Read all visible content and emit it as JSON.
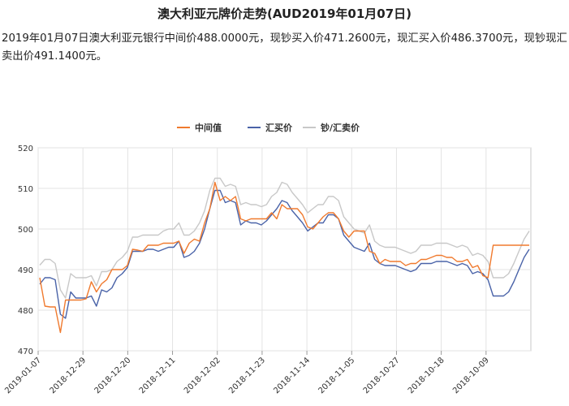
{
  "header": {
    "title": "澳大利亚元牌价走势(AUD2019年01月07日)",
    "description": "2019年01月07日澳大利亚元银行中间价488.0000元，现钞买入价471.2600元，现汇买入价486.3700元，现钞现汇卖出价491.1400元。"
  },
  "chart_data": {
    "type": "line",
    "ylim": [
      470,
      520
    ],
    "yticks": [
      "520",
      "510",
      "500",
      "490",
      "480",
      "470"
    ],
    "x_tick_labels": [
      "2019-01-07",
      "2018-12-29",
      "2018-12-20",
      "2018-12-11",
      "2018-12-02",
      "2018-11-23",
      "2018-11-14",
      "2018-11-05",
      "2018-10-27",
      "2018-10-18",
      "2018-10-09"
    ],
    "grid": true,
    "legend_position": "top-center",
    "series": [
      {
        "name": "中间值",
        "color": "#f07a2e",
        "values": [
          488.0,
          481.0,
          480.8,
          480.8,
          474.5,
          482.5,
          482.5,
          482.5,
          482.5,
          482.8,
          487.0,
          484.5,
          486.5,
          487.5,
          490.0,
          490.0,
          490.0,
          491.0,
          495.0,
          494.8,
          494.5,
          496.0,
          496.0,
          496.0,
          496.5,
          496.5,
          496.5,
          497.0,
          494.0,
          496.5,
          497.5,
          497.0,
          501.5,
          505.0,
          511.5,
          507.0,
          508.0,
          507.0,
          508.0,
          502.5,
          502.0,
          502.5,
          502.5,
          502.5,
          502.5,
          504.0,
          502.5,
          506.0,
          505.0,
          505.0,
          505.0,
          503.5,
          500.5,
          500.0,
          501.5,
          503.0,
          504.0,
          504.0,
          502.5,
          499.5,
          498.0,
          499.5,
          499.5,
          499.5,
          494.5,
          494.0,
          491.5,
          492.5,
          492.0,
          492.0,
          492.0,
          491.0,
          491.5,
          491.5,
          492.5,
          492.5,
          493.0,
          493.5,
          493.5,
          493.0,
          493.0,
          492.0,
          492.0,
          492.5,
          490.5,
          491.0,
          488.5,
          488.0,
          496.0,
          496.0,
          496.0,
          496.0,
          496.0,
          496.0,
          496.0,
          496.0
        ]
      },
      {
        "name": "汇买价",
        "color": "#4a63a8",
        "values": [
          486.4,
          488.0,
          488.0,
          487.5,
          479.0,
          478.0,
          484.5,
          483.0,
          483.0,
          483.0,
          483.5,
          481.0,
          485.0,
          484.5,
          485.5,
          488.0,
          489.0,
          490.5,
          494.5,
          494.5,
          494.5,
          495.0,
          495.0,
          494.5,
          495.0,
          495.5,
          495.5,
          497.0,
          493.0,
          493.5,
          494.5,
          496.5,
          500.0,
          505.0,
          509.5,
          509.5,
          506.5,
          507.0,
          506.5,
          501.0,
          502.0,
          501.5,
          501.5,
          501.0,
          502.0,
          503.5,
          505.0,
          507.0,
          506.5,
          504.5,
          503.0,
          501.5,
          499.5,
          500.5,
          501.5,
          501.5,
          503.5,
          503.5,
          502.5,
          498.5,
          497.0,
          495.5,
          495.0,
          494.5,
          496.5,
          492.5,
          491.5,
          491.0,
          491.0,
          491.0,
          490.5,
          490.0,
          489.5,
          490.0,
          491.5,
          491.5,
          491.5,
          492.0,
          492.0,
          492.0,
          491.5,
          491.0,
          491.5,
          491.0,
          489.0,
          489.5,
          489.0,
          487.5,
          483.5,
          483.5,
          483.5,
          484.5,
          487.0,
          490.0,
          493.0,
          495.0
        ]
      },
      {
        "name": "钞/汇卖价",
        "color": "#c8c8c8",
        "values": [
          491.1,
          492.5,
          492.5,
          491.5,
          485.0,
          483.0,
          489.0,
          488.0,
          488.0,
          488.0,
          488.5,
          486.0,
          489.5,
          489.5,
          490.0,
          492.0,
          493.0,
          494.5,
          498.0,
          498.0,
          498.5,
          498.5,
          498.5,
          498.5,
          499.5,
          500.0,
          500.0,
          501.5,
          498.5,
          498.5,
          499.5,
          501.5,
          504.5,
          509.5,
          512.5,
          512.5,
          510.5,
          511.0,
          510.5,
          506.0,
          506.5,
          506.0,
          506.0,
          505.5,
          506.0,
          508.0,
          509.0,
          511.5,
          511.0,
          509.0,
          507.5,
          506.0,
          504.0,
          505.0,
          506.0,
          506.0,
          508.0,
          508.0,
          507.0,
          503.0,
          501.5,
          500.0,
          499.5,
          499.0,
          501.0,
          497.0,
          496.0,
          495.5,
          495.5,
          495.5,
          495.0,
          494.5,
          494.0,
          494.5,
          496.0,
          496.0,
          496.0,
          496.5,
          496.5,
          496.5,
          496.0,
          495.5,
          496.0,
          495.5,
          493.5,
          494.0,
          493.5,
          492.0,
          488.0,
          488.0,
          488.0,
          489.0,
          491.5,
          494.5,
          497.5,
          499.5
        ]
      }
    ]
  }
}
